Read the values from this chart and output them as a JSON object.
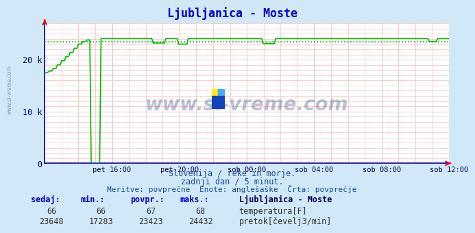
{
  "title": "Ljubljanica - Moste",
  "title_color": "#0000cc",
  "bg_color": "#d0e8f8",
  "plot_bg_color": "#ffffff",
  "x_tick_labels": [
    "pet 16:00",
    "pet 20:00",
    "sob 00:00",
    "sob 04:00",
    "sob 08:00",
    "sob 12:00"
  ],
  "x_tick_positions": [
    0.1667,
    0.3333,
    0.5,
    0.6667,
    0.8333,
    1.0
  ],
  "ylim_max": 27000,
  "ytick_positions": [
    0,
    10000,
    20000
  ],
  "ytick_labels": [
    "0",
    "10 k",
    "20 k"
  ],
  "avg_line_value": 23423,
  "avg_line_color": "#00bb00",
  "flow_color": "#00bb00",
  "temp_color": "#cc0000",
  "watermark_text": "www.si-vreme.com",
  "subtitle1": "Slovenija / reke in morje.",
  "subtitle2": "zadnji dan / 5 minut.",
  "subtitle3": "Meritve: povprečne  Enote: anglešaške  Črta: povprečje",
  "legend_title": "Ljubljanica - Moste",
  "stats_headers": [
    "sedaj:",
    "min.:",
    "povpr.:",
    "maks.:"
  ],
  "temp_label": "temperatura[F]",
  "flow_label": "pretok[čevelj3/min]",
  "stats_temp": [
    66,
    66,
    67,
    68
  ],
  "stats_flow": [
    23648,
    17283,
    23423,
    24432
  ],
  "n_points": 288,
  "axis_color": "#0000bb",
  "minor_grid_color": "#ffaaaa",
  "major_grid_color": "#cccccc"
}
